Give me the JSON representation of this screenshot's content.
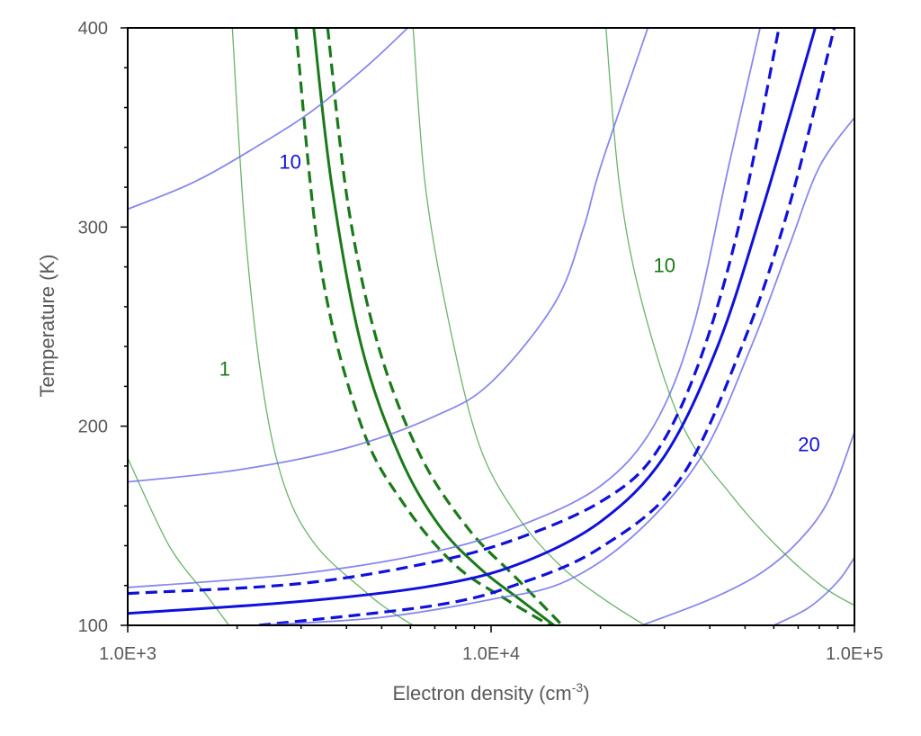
{
  "chart_data": {
    "type": "line",
    "xscale": "log",
    "xlim": [
      1000,
      100000
    ],
    "ylim": [
      100,
      400
    ],
    "grid": false,
    "xlabel": "Electron density (cm",
    "xlabel_sup": "-3",
    "xlabel_end": ")",
    "ylabel": "Temperature (K)",
    "x_tick_labels": [
      "1.0E+3",
      "1.0E+4",
      "1.0E+5"
    ],
    "x_ticks": [
      1000,
      10000,
      100000
    ],
    "y_tick_labels": [
      "100",
      "200",
      "300",
      "400"
    ],
    "y_ticks": [
      100,
      200,
      300,
      400
    ],
    "colors": {
      "green_main": "#1a7a1a",
      "green_contour": "#3a9a3a",
      "blue_main": "#1010dd",
      "blue_contour": "#6a6ae8",
      "axis": "#000000",
      "text": "#595959"
    },
    "contour_labels": [
      {
        "text": "10",
        "color": "blue",
        "x": 2800,
        "y": 332
      },
      {
        "text": "10",
        "color": "green",
        "x": 30000,
        "y": 280
      },
      {
        "text": "1",
        "color": "green",
        "x": 1850,
        "y": 228
      },
      {
        "text": "20",
        "color": "blue",
        "x": 75000,
        "y": 190
      }
    ],
    "series": [
      {
        "role": "green-contour",
        "points": [
          [
            1000,
            184
          ],
          [
            1300,
            140
          ],
          [
            1650,
            115
          ],
          [
            1900,
            100
          ]
        ]
      },
      {
        "role": "green-contour",
        "points": [
          [
            1940,
            400
          ],
          [
            2100,
            300
          ],
          [
            2350,
            220
          ],
          [
            2700,
            170
          ],
          [
            3300,
            140
          ],
          [
            4500,
            117
          ],
          [
            5200,
            108
          ],
          [
            6100,
            100
          ]
        ]
      },
      {
        "role": "green-contour",
        "points": [
          [
            6100,
            400
          ],
          [
            6600,
            320
          ],
          [
            7700,
            250
          ],
          [
            9300,
            190
          ],
          [
            11800,
            155
          ],
          [
            15500,
            130
          ],
          [
            20500,
            113
          ],
          [
            26500,
            100
          ]
        ]
      },
      {
        "role": "green-contour",
        "points": [
          [
            20700,
            400
          ],
          [
            22600,
            320
          ],
          [
            26200,
            260
          ],
          [
            33700,
            200
          ],
          [
            46000,
            165
          ],
          [
            61000,
            140
          ],
          [
            81000,
            120
          ],
          [
            100000,
            110
          ]
        ]
      },
      {
        "role": "green-dashed",
        "points": [
          [
            2900,
            400
          ],
          [
            3400,
            280
          ],
          [
            4400,
            200
          ],
          [
            5800,
            160
          ],
          [
            8000,
            130
          ],
          [
            11000,
            113
          ],
          [
            14500,
            100
          ]
        ]
      },
      {
        "role": "green-solid",
        "points": [
          [
            3250,
            400
          ],
          [
            3650,
            320
          ],
          [
            4400,
            240
          ],
          [
            5600,
            185
          ],
          [
            7200,
            150
          ],
          [
            9400,
            128
          ],
          [
            12000,
            113
          ],
          [
            14900,
            100
          ]
        ]
      },
      {
        "role": "green-dashed",
        "points": [
          [
            3550,
            400
          ],
          [
            4050,
            310
          ],
          [
            4900,
            240
          ],
          [
            6400,
            185
          ],
          [
            8700,
            148
          ],
          [
            11700,
            124
          ],
          [
            15700,
            100
          ]
        ]
      },
      {
        "role": "blue-contour",
        "points": [
          [
            1000,
            309
          ],
          [
            1500,
            322
          ],
          [
            2200,
            339
          ],
          [
            3200,
            358
          ],
          [
            4500,
            380
          ],
          [
            5900,
            400
          ]
        ]
      },
      {
        "role": "blue-contour",
        "points": [
          [
            1000,
            172
          ],
          [
            2000,
            178
          ],
          [
            4000,
            189
          ],
          [
            7000,
            205
          ],
          [
            10000,
            222
          ],
          [
            15000,
            262
          ],
          [
            18000,
            300
          ],
          [
            20000,
            330
          ],
          [
            27000,
            400
          ]
        ]
      },
      {
        "role": "blue-contour",
        "points": [
          [
            1000,
            119
          ],
          [
            3000,
            126
          ],
          [
            7000,
            137
          ],
          [
            12000,
            150
          ],
          [
            20000,
            170
          ],
          [
            28000,
            200
          ],
          [
            36000,
            250
          ],
          [
            45000,
            330
          ],
          [
            55000,
            400
          ]
        ]
      },
      {
        "role": "blue-dashed",
        "points": [
          [
            1000,
            116
          ],
          [
            3000,
            121
          ],
          [
            7000,
            132
          ],
          [
            12000,
            144
          ],
          [
            20000,
            162
          ],
          [
            28000,
            185
          ],
          [
            37000,
            230
          ],
          [
            48000,
            300
          ],
          [
            62000,
            400
          ]
        ]
      },
      {
        "role": "blue-solid",
        "points": [
          [
            1000,
            106
          ],
          [
            3000,
            112
          ],
          [
            7000,
            120
          ],
          [
            12000,
            131
          ],
          [
            20000,
            152
          ],
          [
            30000,
            185
          ],
          [
            42000,
            240
          ],
          [
            56000,
            310
          ],
          [
            78000,
            400
          ]
        ]
      },
      {
        "role": "blue-dashed",
        "points": [
          [
            2300,
            100
          ],
          [
            7000,
            110
          ],
          [
            12000,
            121
          ],
          [
            20000,
            139
          ],
          [
            33000,
            173
          ],
          [
            49000,
            240
          ],
          [
            66000,
            310
          ],
          [
            88000,
            400
          ]
        ]
      },
      {
        "role": "blue-contour",
        "points": [
          [
            2300,
            100
          ],
          [
            5000,
            104
          ],
          [
            10000,
            113
          ],
          [
            16000,
            122
          ],
          [
            25000,
            146
          ],
          [
            38000,
            185
          ],
          [
            52000,
            240
          ],
          [
            66000,
            290
          ],
          [
            80000,
            330
          ],
          [
            100000,
            355
          ]
        ]
      },
      {
        "role": "blue-contour",
        "points": [
          [
            26000,
            100
          ],
          [
            40000,
            113
          ],
          [
            55000,
            126
          ],
          [
            70000,
            142
          ],
          [
            85000,
            163
          ],
          [
            100000,
            197
          ]
        ]
      },
      {
        "role": "blue-contour",
        "points": [
          [
            60000,
            100
          ],
          [
            75000,
            109
          ],
          [
            90000,
            122
          ],
          [
            100000,
            134
          ]
        ]
      }
    ]
  }
}
